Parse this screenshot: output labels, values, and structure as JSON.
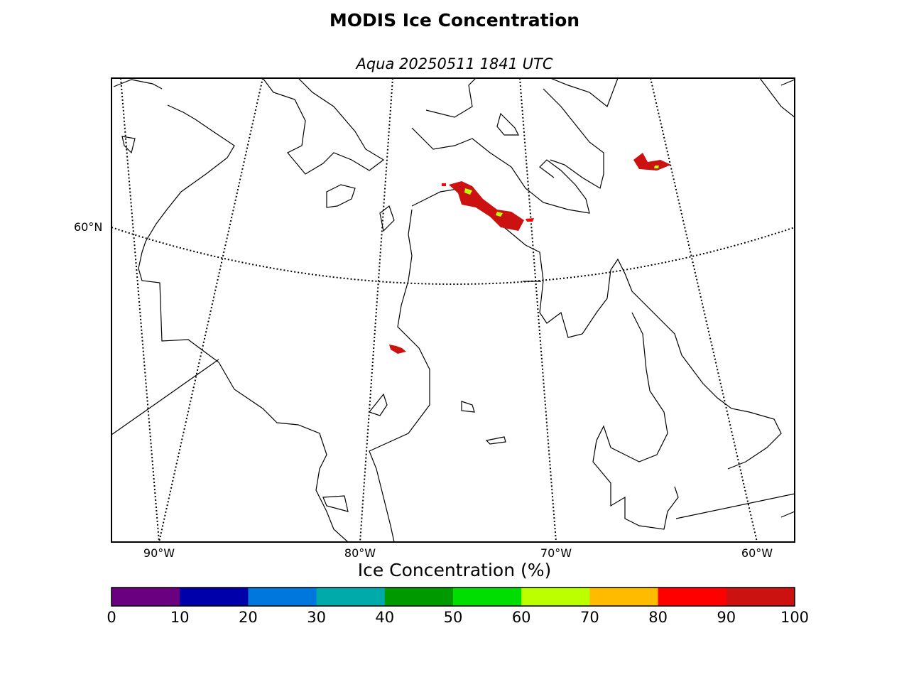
{
  "title": "MODIS Ice Concentration",
  "subtitle": "Aqua 20250511 1841 UTC",
  "lat_labels": [
    "60°N"
  ],
  "lon_labels": [
    "90°W",
    "80°W",
    "70°W",
    "60°W"
  ],
  "colorbar": {
    "title": "Ice Concentration (%)",
    "ticks": [
      "0",
      "10",
      "20",
      "30",
      "40",
      "50",
      "60",
      "70",
      "80",
      "90",
      "100"
    ],
    "colors": [
      "#6a0080",
      "#0000aa",
      "#0077dd",
      "#00aaaa",
      "#009900",
      "#00dd00",
      "#bbff00",
      "#ffbb00",
      "#ff0000",
      "#cc1111"
    ]
  }
}
